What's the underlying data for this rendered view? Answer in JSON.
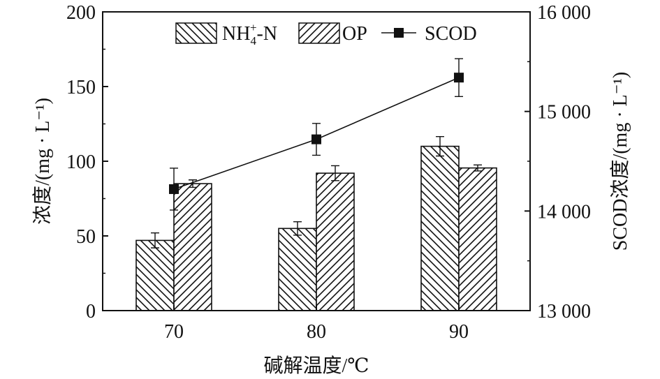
{
  "chart_data": {
    "type": "bar",
    "categories": [
      "70",
      "80",
      "90"
    ],
    "xlabel": "碱解温度/℃",
    "ylabel_left": "浓度/(mg · L⁻¹)",
    "ylabel_right": "SCOD浓度/(mg · L⁻¹)",
    "ylim_left": [
      0,
      200
    ],
    "yticks_left": [
      0,
      50,
      100,
      150,
      200
    ],
    "ylim_right": [
      13000,
      16000
    ],
    "yticks_right": [
      "13 000",
      "14 000",
      "15 000",
      "16 000"
    ],
    "yticks_right_values": [
      13000,
      14000,
      15000,
      16000
    ],
    "legend_position": "top",
    "grid": false,
    "series": [
      {
        "name": "NH4+-N",
        "legend_main": "NH",
        "legend_sub": "4",
        "legend_sup": "+",
        "legend_tail": "-N",
        "kind": "bar",
        "axis": "left",
        "hatch": "backslash",
        "values": [
          47,
          55,
          110
        ],
        "errors": [
          5,
          4.5,
          6.5
        ]
      },
      {
        "name": "OP",
        "legend_main": "OP",
        "kind": "bar",
        "axis": "left",
        "hatch": "slash",
        "values": [
          85,
          92,
          95.5
        ],
        "errors": [
          2.5,
          5,
          2
        ]
      },
      {
        "name": "SCOD",
        "legend_main": "SCOD",
        "kind": "line",
        "axis": "right",
        "marker": "square",
        "values": [
          14220,
          14720,
          15340
        ],
        "errors": [
          210,
          160,
          190
        ]
      }
    ]
  }
}
